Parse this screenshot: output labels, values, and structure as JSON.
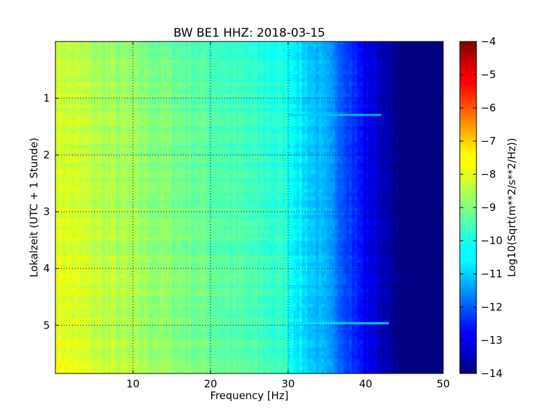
{
  "chart_data": {
    "type": "heatmap",
    "title": "BW BE1 HHZ: 2018-03-15",
    "xlabel": "Frequency [Hz]",
    "ylabel": "Lokalzeit (UTC + 1 Stunde)",
    "colorbar_label": "Log10(Sqrt(m**2/s**2/Hz))",
    "xlim": [
      0,
      50
    ],
    "ylim": [
      0,
      5.85
    ],
    "y_inverted": true,
    "x_ticks": [
      10,
      20,
      30,
      40,
      50
    ],
    "y_ticks": [
      1,
      2,
      3,
      4,
      5
    ],
    "colorbar_range": [
      -14,
      -4
    ],
    "colorbar_ticks": [
      -4,
      -5,
      -6,
      -7,
      -8,
      -9,
      -10,
      -11,
      -12,
      -13,
      -14
    ],
    "colormap": "jet",
    "grid": "dotted",
    "spectrum_profile": {
      "frequency": [
        0,
        5,
        10,
        15,
        20,
        25,
        30,
        32,
        34,
        36,
        38,
        40,
        42,
        44,
        46,
        50
      ],
      "log_amplitude": [
        -8.2,
        -8.6,
        -8.9,
        -9.2,
        -9.5,
        -9.8,
        -10.1,
        -10.6,
        -11.0,
        -11.5,
        -12.2,
        -12.9,
        -13.4,
        -14.0,
        -14.0,
        -14.0
      ]
    },
    "notable_bands": [
      {
        "time": 1.3,
        "freq_range": [
          30,
          42
        ],
        "log_amplitude": -10.8
      },
      {
        "time": 4.97,
        "freq_range": [
          30,
          43
        ],
        "log_amplitude": -10.5
      }
    ]
  }
}
